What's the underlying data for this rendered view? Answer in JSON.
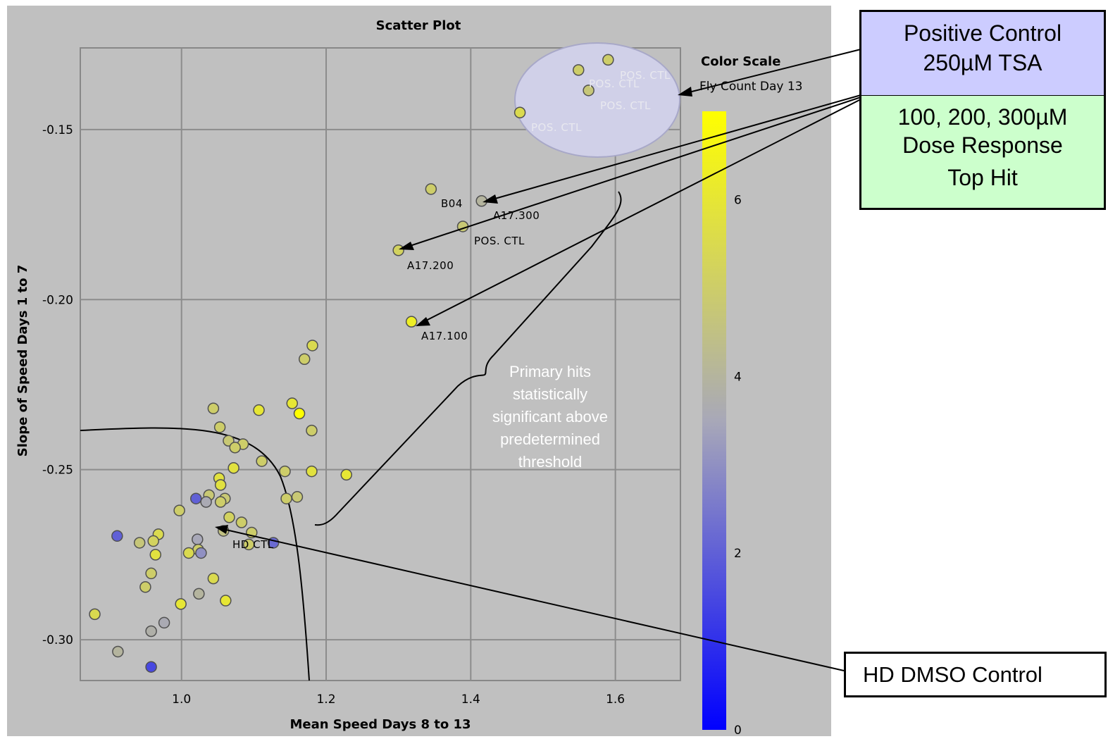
{
  "chart_data": {
    "type": "scatter",
    "title": "Scatter Plot",
    "xlabel": "Mean Speed Days 8 to 13",
    "ylabel": "Slope of Speed Days 1 to 7",
    "xlim": [
      0.86,
      1.69
    ],
    "ylim": [
      -0.312,
      -0.126
    ],
    "x_ticks": [
      "1.0",
      "1.2",
      "1.4",
      "1.6"
    ],
    "y_ticks": [
      "-0.15",
      "-0.20",
      "-0.25",
      "-0.30"
    ],
    "grid": true,
    "color_scale": {
      "title": "Color Scale",
      "subtitle": "Fly Count Day 13",
      "min": 0,
      "max": 7,
      "low_color": "#0000ff",
      "mid_color": "#a8a8b8",
      "high_color": "#ffff00",
      "ticks": [
        "0",
        "2",
        "4",
        "6"
      ]
    },
    "labels": {
      "pos1": "POS. CTL",
      "pos2": "POS. CTL",
      "pos3": "POS. CTL",
      "pos4": "POS. CTL",
      "pos5": "POS. CTL",
      "b04": "B04",
      "a17_300": "A17.300",
      "a17_200": "A17.200",
      "a17_100": "A17.100",
      "hd_ctl": "HD CTL"
    },
    "points": [
      {
        "x": 1.59,
        "y": -0.1295,
        "c": 5.0
      },
      {
        "x": 1.549,
        "y": -0.1325,
        "c": 5.0
      },
      {
        "x": 1.563,
        "y": -0.1385,
        "c": 4.7
      },
      {
        "x": 1.468,
        "y": -0.145,
        "c": 5.5
      },
      {
        "x": 1.345,
        "y": -0.1675,
        "c": 5.0
      },
      {
        "x": 1.415,
        "y": -0.171,
        "c": 4.0
      },
      {
        "x": 1.389,
        "y": -0.1785,
        "c": 4.8
      },
      {
        "x": 1.3,
        "y": -0.1855,
        "c": 5.2
      },
      {
        "x": 1.318,
        "y": -0.2065,
        "c": 6.3
      },
      {
        "x": 1.181,
        "y": -0.2135,
        "c": 5.5
      },
      {
        "x": 1.17,
        "y": -0.2175,
        "c": 5.0
      },
      {
        "x": 1.044,
        "y": -0.232,
        "c": 5.0
      },
      {
        "x": 1.107,
        "y": -0.2325,
        "c": 6.0
      },
      {
        "x": 1.153,
        "y": -0.2305,
        "c": 6.0
      },
      {
        "x": 1.163,
        "y": -0.2335,
        "c": 7.0
      },
      {
        "x": 1.053,
        "y": -0.2375,
        "c": 5.0
      },
      {
        "x": 1.18,
        "y": -0.2385,
        "c": 5.0
      },
      {
        "x": 1.065,
        "y": -0.2415,
        "c": 4.8
      },
      {
        "x": 1.085,
        "y": -0.2425,
        "c": 5.0
      },
      {
        "x": 1.074,
        "y": -0.2435,
        "c": 5.0
      },
      {
        "x": 1.111,
        "y": -0.2475,
        "c": 5.0
      },
      {
        "x": 1.072,
        "y": -0.2495,
        "c": 5.8
      },
      {
        "x": 1.143,
        "y": -0.2505,
        "c": 5.0
      },
      {
        "x": 1.18,
        "y": -0.2505,
        "c": 5.8
      },
      {
        "x": 1.228,
        "y": -0.2515,
        "c": 6.0
      },
      {
        "x": 1.052,
        "y": -0.2525,
        "c": 5.8
      },
      {
        "x": 1.054,
        "y": -0.2545,
        "c": 5.8
      },
      {
        "x": 1.038,
        "y": -0.2575,
        "c": 4.8
      },
      {
        "x": 1.145,
        "y": -0.2585,
        "c": 5.0
      },
      {
        "x": 1.16,
        "y": -0.258,
        "c": 4.8
      },
      {
        "x": 1.02,
        "y": -0.2585,
        "c": 2.0
      },
      {
        "x": 1.06,
        "y": -0.2585,
        "c": 4.8
      },
      {
        "x": 1.054,
        "y": -0.2595,
        "c": 5.0
      },
      {
        "x": 1.034,
        "y": -0.2595,
        "c": 3.6
      },
      {
        "x": 0.997,
        "y": -0.262,
        "c": 5.0
      },
      {
        "x": 1.066,
        "y": -0.264,
        "c": 5.2
      },
      {
        "x": 1.083,
        "y": -0.2655,
        "c": 5.0
      },
      {
        "x": 1.058,
        "y": -0.268,
        "c": 4.5
      },
      {
        "x": 1.097,
        "y": -0.2685,
        "c": 5.0
      },
      {
        "x": 0.968,
        "y": -0.269,
        "c": 5.5
      },
      {
        "x": 0.911,
        "y": -0.2695,
        "c": 2.0
      },
      {
        "x": 1.022,
        "y": -0.2705,
        "c": 3.5
      },
      {
        "x": 0.961,
        "y": -0.271,
        "c": 5.2
      },
      {
        "x": 0.942,
        "y": -0.2715,
        "c": 4.7
      },
      {
        "x": 1.127,
        "y": -0.2715,
        "c": 2.2
      },
      {
        "x": 1.093,
        "y": -0.272,
        "c": 5.0
      },
      {
        "x": 1.023,
        "y": -0.2735,
        "c": 5.0
      },
      {
        "x": 1.027,
        "y": -0.2745,
        "c": 3.0
      },
      {
        "x": 1.01,
        "y": -0.2745,
        "c": 5.5
      },
      {
        "x": 0.964,
        "y": -0.275,
        "c": 5.8
      },
      {
        "x": 0.958,
        "y": -0.2805,
        "c": 5.0
      },
      {
        "x": 1.044,
        "y": -0.282,
        "c": 5.5
      },
      {
        "x": 0.95,
        "y": -0.2845,
        "c": 5.0
      },
      {
        "x": 1.024,
        "y": -0.2865,
        "c": 4.0
      },
      {
        "x": 1.061,
        "y": -0.2885,
        "c": 6.0
      },
      {
        "x": 0.999,
        "y": -0.2895,
        "c": 6.0
      },
      {
        "x": 0.976,
        "y": -0.295,
        "c": 3.6
      },
      {
        "x": 0.958,
        "y": -0.2975,
        "c": 3.8
      },
      {
        "x": 0.88,
        "y": -0.2925,
        "c": 5.5
      },
      {
        "x": 0.912,
        "y": -0.3035,
        "c": 4.0
      },
      {
        "x": 0.958,
        "y": -0.308,
        "c": 1.5
      }
    ]
  },
  "annotations": {
    "positive_line1": "Positive Control",
    "positive_line2": "250µM TSA",
    "dose_line1": "100, 200, 300µM",
    "dose_line2": "Dose Response",
    "dose_line3": "Top Hit",
    "hd": "HD DMSO Control",
    "primary_note": "Primary hits statistically significant above predetermined threshold"
  }
}
